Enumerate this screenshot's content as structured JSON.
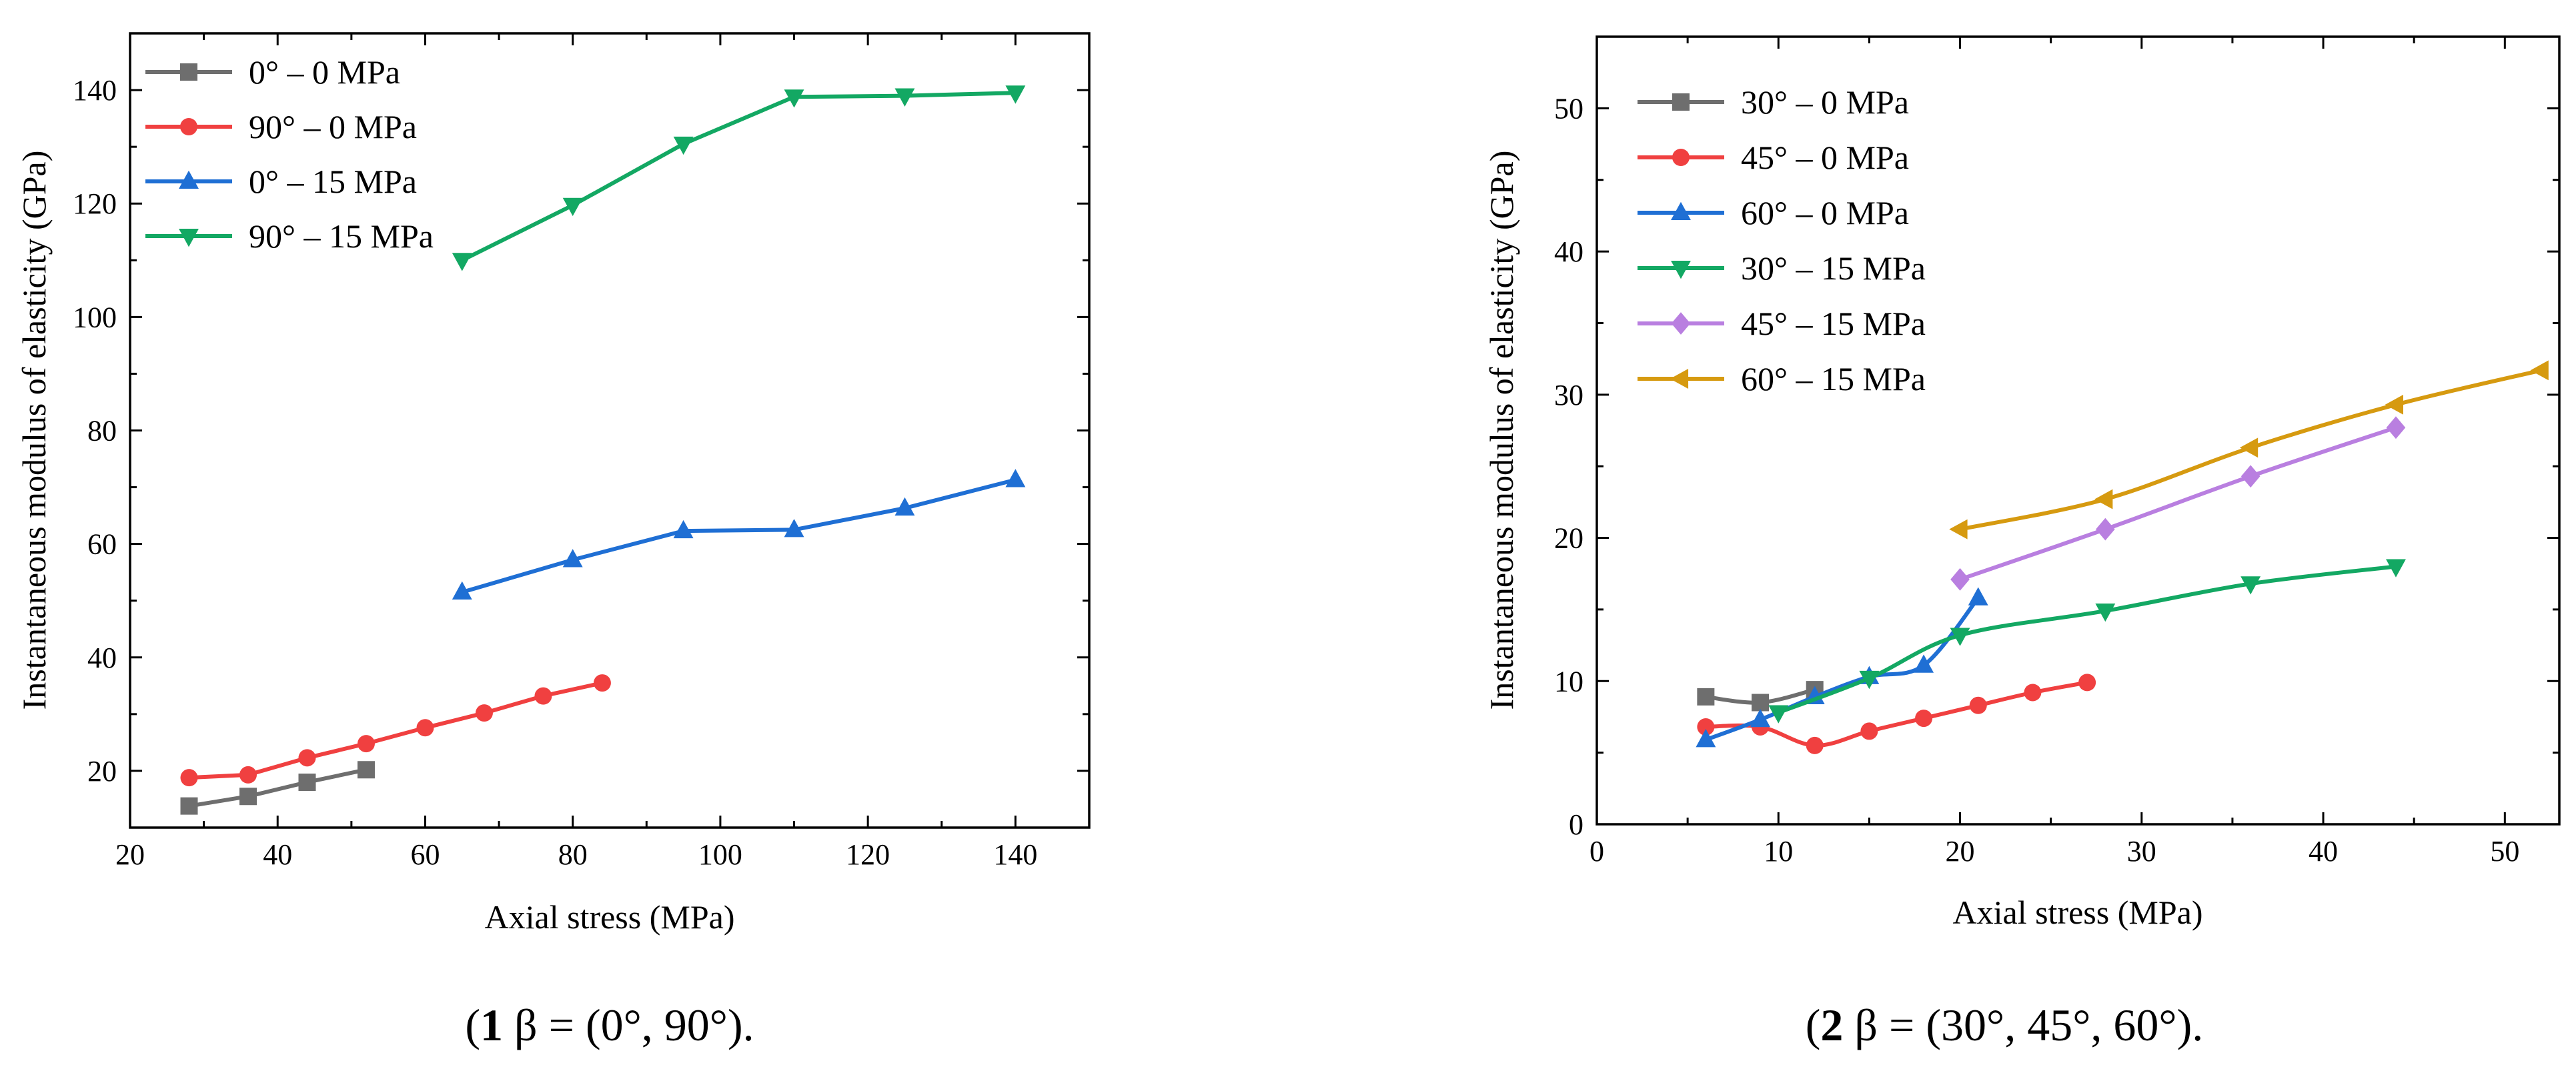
{
  "chart_data": [
    {
      "type": "line",
      "caption_num": "1",
      "caption_text": " β = (0°, 90°).",
      "xlabel": "Axial stress (MPa)",
      "ylabel": "Instantaneous modulus of elasticity (GPa)",
      "xlim": [
        20,
        150
      ],
      "ylim": [
        10,
        150
      ],
      "xticks": [
        20,
        40,
        60,
        80,
        100,
        120,
        140
      ],
      "yticks": [
        20,
        40,
        60,
        80,
        100,
        120,
        140
      ],
      "legend_position": "top-left",
      "series": [
        {
          "name": "0° – 0 MPa",
          "color": "#6e6e6e",
          "marker": "square",
          "x": [
            28,
            36,
            44,
            52
          ],
          "y": [
            13.8,
            15.5,
            18,
            20.2
          ]
        },
        {
          "name": "90° – 0 MPa",
          "color": "#f04040",
          "marker": "circle",
          "x": [
            28,
            36,
            44,
            52,
            60,
            68,
            76,
            84
          ],
          "y": [
            18.8,
            19.3,
            22.3,
            24.8,
            27.6,
            30.2,
            33.2,
            35.5
          ]
        },
        {
          "name": "0° – 15 MPa",
          "color": "#1f6fd4",
          "marker": "triangle-up",
          "x": [
            65,
            80,
            95,
            110,
            125,
            140
          ],
          "y": [
            51.5,
            57.2,
            62.3,
            62.5,
            66.3,
            71.3
          ]
        },
        {
          "name": "90° – 15 MPa",
          "color": "#13a863",
          "marker": "triangle-down",
          "x": [
            65,
            80,
            95,
            110,
            125,
            140
          ],
          "y": [
            110,
            119.7,
            130.5,
            138.8,
            139,
            139.5
          ]
        }
      ]
    },
    {
      "type": "line",
      "caption_num": "2",
      "caption_text": " β = (30°, 45°, 60°).",
      "xlabel": "Axial stress (MPa)",
      "ylabel": "Instantaneous modulus of elasticity (GPa)",
      "xlim": [
        0,
        53
      ],
      "ylim": [
        0,
        55
      ],
      "xticks": [
        0,
        10,
        20,
        30,
        40,
        50
      ],
      "yticks": [
        0,
        10,
        20,
        30,
        40,
        50
      ],
      "legend_position": "top-left",
      "series": [
        {
          "name": "30° – 0 MPa",
          "color": "#6e6e6e",
          "marker": "square",
          "x": [
            6,
            9,
            12
          ],
          "y": [
            8.9,
            8.5,
            9.4
          ]
        },
        {
          "name": "45° – 0 MPa",
          "color": "#f04040",
          "marker": "circle",
          "x": [
            6,
            9,
            12,
            15,
            18,
            21,
            24,
            27
          ],
          "y": [
            6.8,
            6.8,
            5.5,
            6.5,
            7.4,
            8.3,
            9.2,
            9.9
          ]
        },
        {
          "name": "60° – 0 MPa",
          "color": "#1f6fd4",
          "marker": "triangle-up",
          "x": [
            6,
            9,
            12,
            15,
            18,
            21
          ],
          "y": [
            5.9,
            7.3,
            8.9,
            10.3,
            11.1,
            15.8
          ]
        },
        {
          "name": "30° – 15 MPa",
          "color": "#13a863",
          "marker": "triangle-down",
          "x": [
            10,
            15,
            20,
            28,
            36,
            44
          ],
          "y": [
            7.8,
            10.2,
            13.2,
            14.9,
            16.8,
            18
          ]
        },
        {
          "name": "45° – 15 MPa",
          "color": "#b97fe0",
          "marker": "diamond",
          "x": [
            20,
            28,
            36,
            44
          ],
          "y": [
            17.1,
            20.6,
            24.3,
            27.7
          ]
        },
        {
          "name": "60° – 15 MPa",
          "color": "#d69a10",
          "marker": "triangle-left",
          "x": [
            20,
            28,
            36,
            44,
            52
          ],
          "y": [
            20.6,
            22.7,
            26.3,
            29.3,
            31.7
          ]
        }
      ]
    }
  ]
}
